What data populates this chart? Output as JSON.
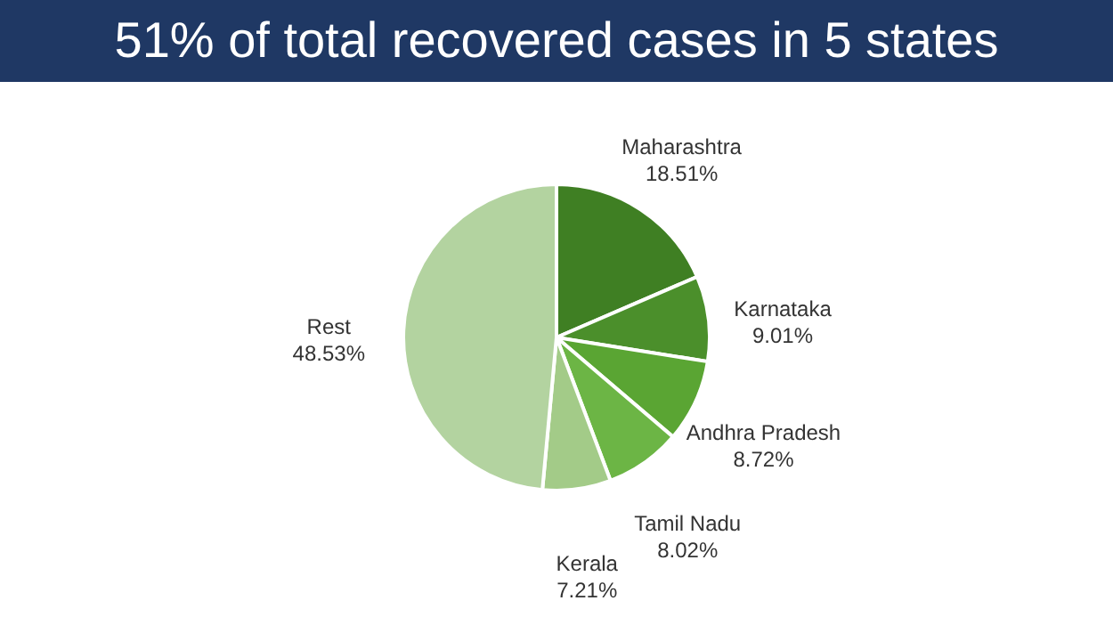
{
  "chart_data": {
    "type": "pie",
    "title": "51% of total recovered cases in 5 states",
    "categories": [
      "Maharashtra",
      "Karnataka",
      "Andhra Pradesh",
      "Tamil Nadu",
      "Kerala",
      "Rest"
    ],
    "values": [
      18.51,
      9.01,
      8.72,
      8.02,
      7.21,
      48.53
    ],
    "value_labels": [
      "18.51%",
      "9.01%",
      "8.72%",
      "8.02%",
      "7.21%",
      "48.53%"
    ],
    "colors": [
      "#3f7f23",
      "#4b8f2b",
      "#5aa533",
      "#6cb545",
      "#a3cb88",
      "#b3d3a0"
    ]
  }
}
